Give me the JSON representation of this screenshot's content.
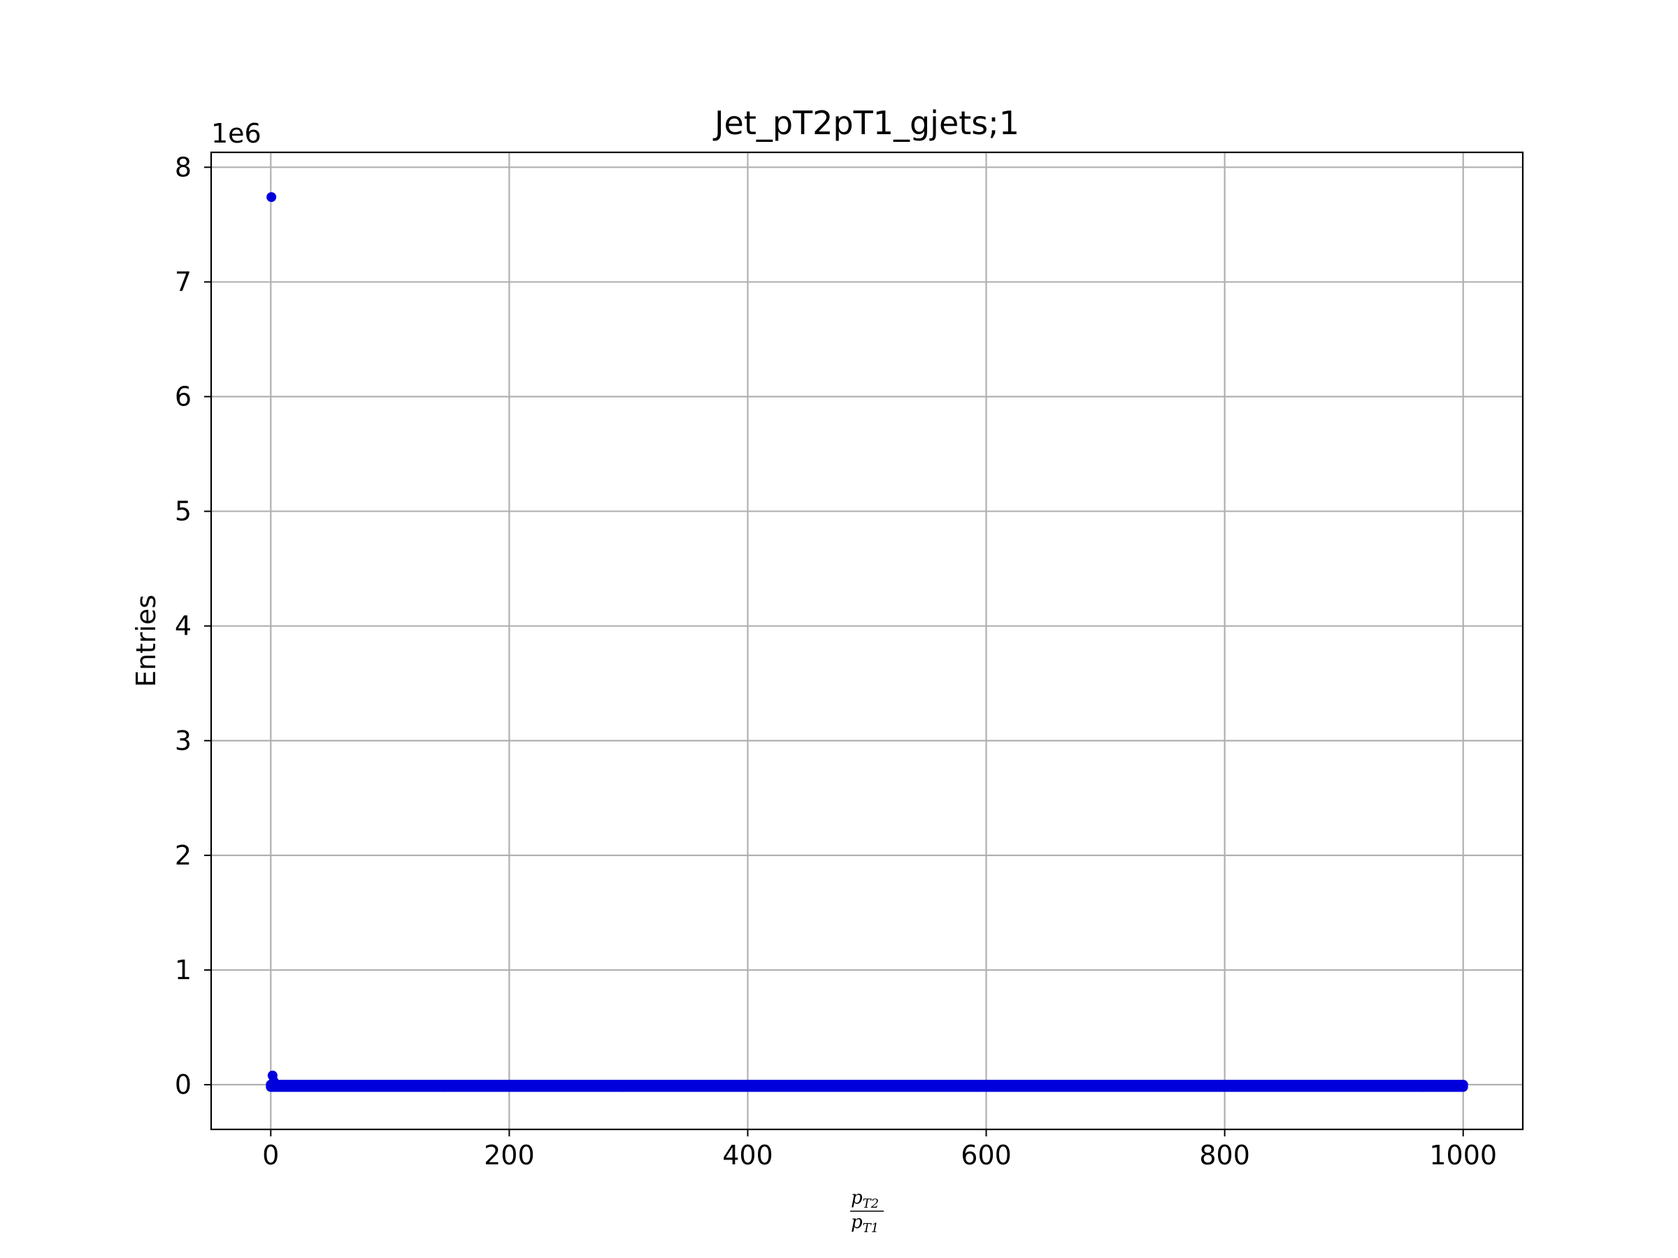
{
  "chart_data": {
    "type": "scatter",
    "title": "Jet_pT2pT1_gjets;1",
    "ylabel": "Entries",
    "xlabel_math": {
      "numerator": "p",
      "numerator_sub": "T2",
      "denominator": "p",
      "denominator_sub": "T1"
    },
    "y_offset_label": "1e6",
    "xlim": [
      -50,
      1050
    ],
    "ylim": [
      -0.39,
      8.13
    ],
    "y_scale_factor": 1000000,
    "x_ticks": [
      0,
      200,
      400,
      600,
      800,
      1000
    ],
    "x_tick_labels": [
      "0",
      "200",
      "400",
      "600",
      "800",
      "1000"
    ],
    "y_ticks": [
      0,
      1,
      2,
      3,
      4,
      5,
      6,
      7,
      8
    ],
    "y_tick_labels": [
      "0",
      "1",
      "2",
      "3",
      "4",
      "5",
      "6",
      "7",
      "8"
    ],
    "grid": true,
    "marker_color": "#0000dd",
    "series": [
      {
        "peak_points": [
          {
            "x": 0.5,
            "y": 7.74
          },
          {
            "x": 1.5,
            "y": 0.08
          },
          {
            "x": 2.5,
            "y": 0.03
          }
        ],
        "tail": {
          "x_start": 0,
          "x_end": 1000,
          "y_values": [
            0.0,
            -0.02
          ],
          "step": 1
        }
      }
    ]
  }
}
